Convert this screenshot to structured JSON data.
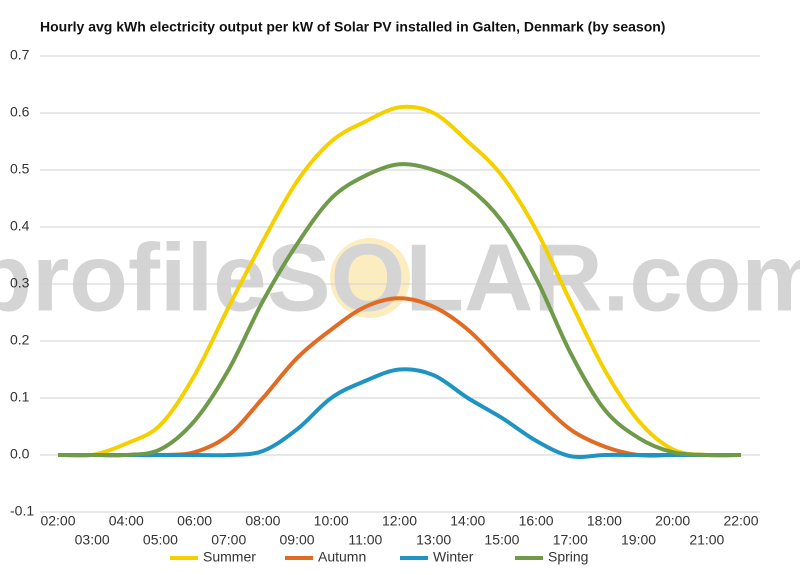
{
  "chart_data": {
    "type": "line",
    "title": "Hourly avg kWh electricity output per kW of Solar PV installed in Galten, Denmark (by season)",
    "watermark": "profileSOLAR.com",
    "categories": [
      "02:00",
      "03:00",
      "04:00",
      "05:00",
      "06:00",
      "07:00",
      "08:00",
      "09:00",
      "10:00",
      "11:00",
      "12:00",
      "13:00",
      "14:00",
      "15:00",
      "16:00",
      "17:00",
      "18:00",
      "19:00",
      "20:00",
      "21:00",
      "22:00"
    ],
    "series": [
      {
        "name": "Summer",
        "color": "#f5d000",
        "values": [
          0,
          0,
          0.02,
          0.053,
          0.14,
          0.26,
          0.375,
          0.48,
          0.55,
          0.585,
          0.61,
          0.6,
          0.55,
          0.49,
          0.395,
          0.27,
          0.15,
          0.06,
          0.01,
          0,
          0
        ]
      },
      {
        "name": "Autumn",
        "color": "#e26b24",
        "values": [
          0,
          0,
          0,
          0,
          0.005,
          0.035,
          0.1,
          0.17,
          0.22,
          0.26,
          0.275,
          0.26,
          0.22,
          0.16,
          0.1,
          0.045,
          0.015,
          0,
          0,
          0,
          0
        ]
      },
      {
        "name": "Winter",
        "color": "#1f93c2",
        "values": [
          0,
          0,
          0,
          0,
          0,
          0,
          0.007,
          0.045,
          0.1,
          0.13,
          0.15,
          0.14,
          0.1,
          0.065,
          0.025,
          -0.002,
          0,
          0,
          0,
          0,
          0
        ]
      },
      {
        "name": "Spring",
        "color": "#6e9a4a",
        "values": [
          0,
          0,
          0,
          0.01,
          0.06,
          0.15,
          0.27,
          0.37,
          0.45,
          0.49,
          0.51,
          0.5,
          0.47,
          0.41,
          0.31,
          0.18,
          0.08,
          0.03,
          0.005,
          0,
          0
        ]
      }
    ],
    "ylim": [
      -0.1,
      0.7
    ],
    "yticks": [
      -0.1,
      {
        "value": 0,
        "label": "0.0"
      },
      0.1,
      0.2,
      0.3,
      0.4,
      0.5,
      0.6,
      0.7
    ],
    "grid": true
  }
}
